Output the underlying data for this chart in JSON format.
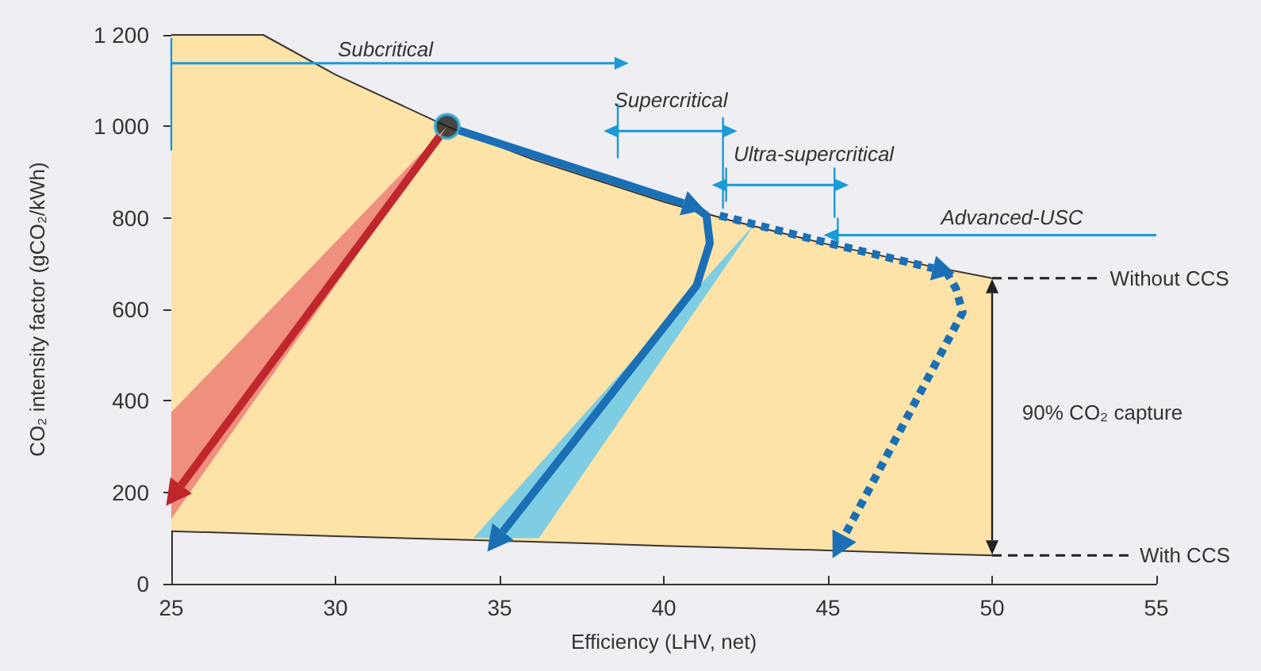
{
  "chart_data": {
    "type": "line",
    "xlabel": "Efficiency (LHV, net)",
    "ylabel": "CO₂ intensity factor (gCO₂/kWh)",
    "xlim": [
      25,
      55
    ],
    "xticks": [
      25,
      30,
      35,
      40,
      45,
      50,
      55
    ],
    "ylim": [
      0,
      1200
    ],
    "yticks": [
      0,
      200,
      400,
      600,
      800,
      {
        "value": 1000,
        "label": "1 000"
      },
      {
        "value": 1200,
        "label": "1 200"
      }
    ],
    "annotations": [
      "Subcritical",
      "Supercritical",
      "Ultra-supercritical",
      "Advanced-USC",
      "90% CO₂ capture"
    ],
    "series": [
      {
        "color": "#3a3530",
        "x": [
          25,
          27.8,
          30,
          33.4,
          36,
          40,
          42,
          45,
          48,
          50
        ],
        "values": [
          115,
          109,
          104,
          97,
          92,
          83,
          79,
          73,
          66,
          62
        ]
      },
      {
        "type": "area",
        "color": "#fde3a7",
        "x": [
          25,
          27.8,
          30,
          33.4,
          36,
          40,
          42,
          45,
          48,
          50
        ],
        "values": [
          1200,
          1200,
          1113,
          1000,
          928,
          835,
          795,
          742,
          696,
          668
        ]
      },
      {
        "name": "Without CCS",
        "color": "#222222",
        "line_style": "dashed",
        "x": [
          50,
          53.3
        ],
        "values": [
          668,
          668
        ]
      },
      {
        "name": "With CCS",
        "color": "#222222",
        "line_style": "dashed",
        "x": [
          50,
          54.2
        ],
        "values": [
          62,
          62
        ]
      },
      {
        "type": "scatter",
        "marker": "circle",
        "color": "#1a1a1a",
        "x": [
          33.4
        ],
        "values": [
          1000
        ]
      }
    ]
  }
}
